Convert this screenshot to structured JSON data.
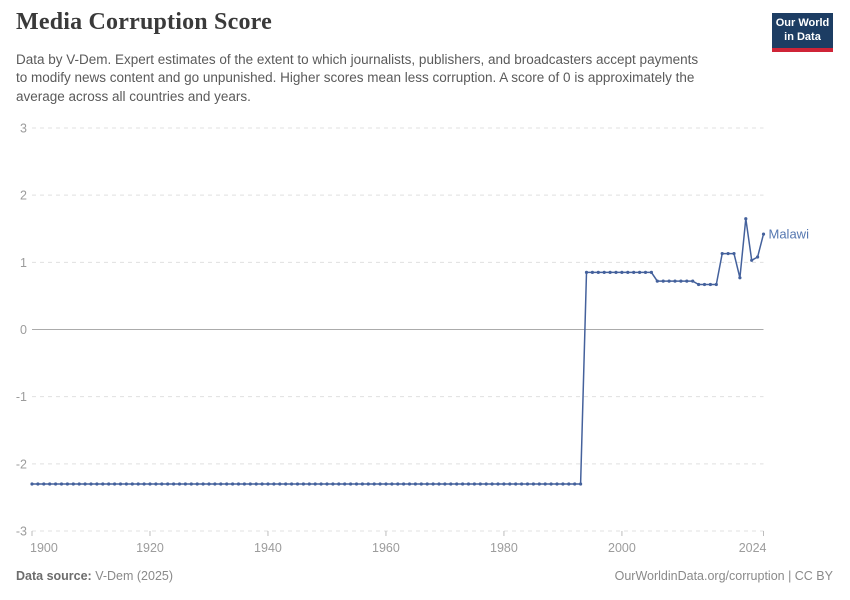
{
  "header": {
    "title": "Media Corruption Score",
    "subtitle": "Data by V-Dem. Expert estimates of the extent to which journalists, publishers, and broadcasters accept payments to modify news content and go unpunished. Higher scores mean less corruption. A score of 0 is approximately the average across all countries and years.",
    "logo": {
      "line1": "Our World",
      "line2": "in Data",
      "bg_color": "#1d3d63",
      "accent_color": "#cf2437"
    }
  },
  "footer": {
    "source_label": "Data source:",
    "source_value": " V-Dem (2025)",
    "attribution": "OurWorldinData.org/corruption | CC BY"
  },
  "chart_data": {
    "type": "line",
    "title": "Media Corruption Score",
    "xlabel": "",
    "ylabel": "",
    "xlim": [
      1900,
      2024
    ],
    "ylim": [
      -3,
      3
    ],
    "x_ticks": [
      1900,
      1920,
      1940,
      1960,
      1980,
      2000,
      2024
    ],
    "y_ticks": [
      3,
      2,
      1,
      0,
      -1,
      -2,
      -3
    ],
    "grid": "horizontal dashed gridlines, solid zero line",
    "legend": "inline entity label at line end",
    "entity_label": "Malawi",
    "line_color": "#44619c",
    "entity_label_color": "#5577b0",
    "gridline_color": "#e0e0e0",
    "zero_line_color": "#ababab",
    "axis_label_color": "#9c9c9c",
    "marker_every_year": true,
    "series": [
      {
        "name": "Malawi",
        "segments": [
          {
            "from_year": 1900,
            "to_year": 1993,
            "value": -2.3
          },
          {
            "from_year": 1994,
            "to_year": 2005,
            "value": 0.85
          },
          {
            "from_year": 2006,
            "to_year": 2012,
            "value": 0.72
          },
          {
            "from_year": 2013,
            "to_year": 2016,
            "value": 0.67
          },
          {
            "from_year": 2017,
            "to_year": 2019,
            "value": 1.13
          },
          {
            "from_year": 2020,
            "to_year": 2020,
            "value": 0.77
          },
          {
            "from_year": 2021,
            "to_year": 2021,
            "value": 1.65
          },
          {
            "from_year": 2022,
            "to_year": 2022,
            "value": 1.03
          },
          {
            "from_year": 2023,
            "to_year": 2023,
            "value": 1.08
          },
          {
            "from_year": 2024,
            "to_year": 2024,
            "value": 1.42
          }
        ]
      }
    ]
  }
}
